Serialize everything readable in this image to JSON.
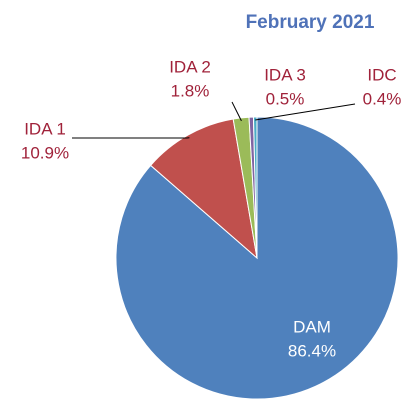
{
  "chart_data": {
    "type": "pie",
    "title": "February 2021",
    "categories": [
      "DAM",
      "IDA 1",
      "IDA 2",
      "IDA 3",
      "IDC"
    ],
    "values": [
      86.4,
      10.9,
      1.8,
      0.5,
      0.4
    ],
    "value_labels": [
      "86.4%",
      "10.9%",
      "1.8%",
      "0.5%",
      "0.4%"
    ],
    "colors": [
      "#4f81bd",
      "#c0504d",
      "#9bbb59",
      "#8064a2",
      "#4bacc6"
    ]
  }
}
